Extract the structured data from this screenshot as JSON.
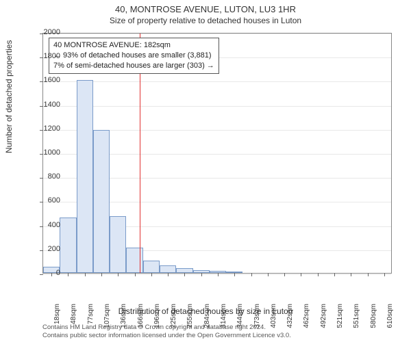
{
  "title": "40, MONTROSE AVENUE, LUTON, LU3 1HR",
  "subtitle": "Size of property relative to detached houses in Luton",
  "ylabel": "Number of detached properties",
  "xlabel": "Distribution of detached houses by size in Luton",
  "chart": {
    "type": "histogram",
    "ylim": [
      0,
      2000
    ],
    "ytick_step": 200,
    "yticks": [
      0,
      200,
      400,
      600,
      800,
      1000,
      1200,
      1400,
      1600,
      1800,
      2000
    ],
    "xticks": [
      "18sqm",
      "48sqm",
      "77sqm",
      "107sqm",
      "136sqm",
      "166sqm",
      "196sqm",
      "225sqm",
      "255sqm",
      "284sqm",
      "314sqm",
      "344sqm",
      "373sqm",
      "403sqm",
      "432sqm",
      "462sqm",
      "492sqm",
      "521sqm",
      "551sqm",
      "580sqm",
      "610sqm"
    ],
    "bar_values": [
      50,
      460,
      1600,
      1190,
      470,
      210,
      100,
      60,
      40,
      25,
      18,
      10,
      0,
      0,
      0,
      0,
      0,
      0,
      0,
      0,
      0
    ],
    "bar_fill": "#dce6f5",
    "bar_border": "#7a9bc9",
    "grid_color": "#e8e8e8",
    "background_color": "#ffffff",
    "axis_color": "#888888",
    "reference_value": 182,
    "reference_color": "#e03030",
    "xmin": 18,
    "xmax": 610,
    "xstep": 29.6
  },
  "info_box": {
    "line1": "40 MONTROSE AVENUE: 182sqm",
    "line2": "← 93% of detached houses are smaller (3,881)",
    "line3": "7% of semi-detached houses are larger (303) →",
    "border_color": "#555555",
    "fontsize": 11
  },
  "footer": {
    "line1": "Contains HM Land Registry data © Crown copyright and database right 2024.",
    "line2": "Contains public sector information licensed under the Open Government Licence v3.0."
  }
}
